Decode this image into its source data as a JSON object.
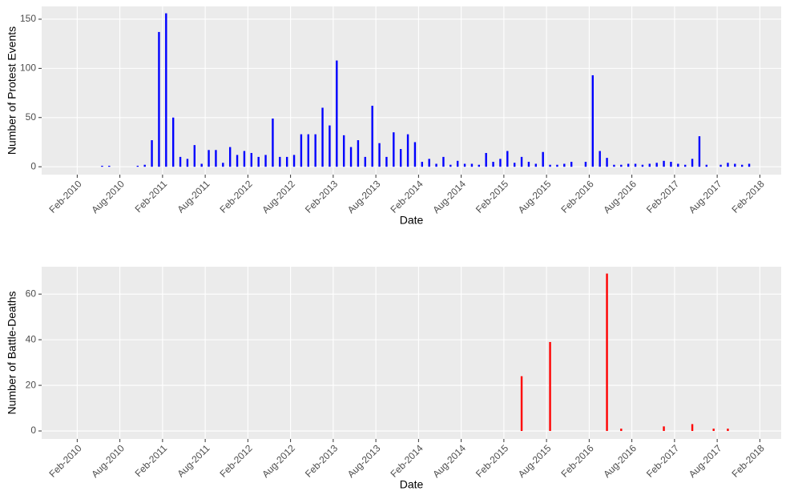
{
  "chart_data": [
    {
      "type": "bar",
      "xlabel": "Date",
      "ylabel": "Number of Protest Events",
      "grid": true,
      "series": [
        {
          "color": "#0000ff",
          "x": [
            "2010-05",
            "2010-06",
            "2010-10",
            "2010-11",
            "2010-12",
            "2011-01",
            "2011-02",
            "2011-03",
            "2011-04",
            "2011-05",
            "2011-06",
            "2011-07",
            "2011-08",
            "2011-09",
            "2011-10",
            "2011-11",
            "2011-12",
            "2012-01",
            "2012-02",
            "2012-03",
            "2012-04",
            "2012-05",
            "2012-06",
            "2012-07",
            "2012-08",
            "2012-09",
            "2012-10",
            "2012-11",
            "2012-12",
            "2013-01",
            "2013-02",
            "2013-03",
            "2013-04",
            "2013-05",
            "2013-06",
            "2013-07",
            "2013-08",
            "2013-09",
            "2013-10",
            "2013-11",
            "2013-12",
            "2014-01",
            "2014-02",
            "2014-03",
            "2014-04",
            "2014-05",
            "2014-06",
            "2014-07",
            "2014-08",
            "2014-09",
            "2014-10",
            "2014-11",
            "2014-12",
            "2015-01",
            "2015-02",
            "2015-03",
            "2015-04",
            "2015-05",
            "2015-06",
            "2015-07",
            "2015-08",
            "2015-09",
            "2015-10",
            "2015-11",
            "2016-01",
            "2016-02",
            "2016-03",
            "2016-04",
            "2016-05",
            "2016-06",
            "2016-07",
            "2016-08",
            "2016-09",
            "2016-10",
            "2016-11",
            "2016-12",
            "2017-01",
            "2017-02",
            "2017-03",
            "2017-04",
            "2017-05",
            "2017-06",
            "2017-08",
            "2017-09",
            "2017-10",
            "2017-11",
            "2017-12"
          ],
          "values": [
            1,
            1,
            1,
            2,
            27,
            137,
            156,
            50,
            10,
            8,
            22,
            3,
            17,
            17,
            4,
            20,
            12,
            16,
            14,
            10,
            12,
            49,
            10,
            10,
            12,
            33,
            33,
            33,
            60,
            42,
            108,
            32,
            20,
            27,
            10,
            62,
            24,
            10,
            35,
            18,
            33,
            25,
            5,
            8,
            3,
            10,
            2,
            6,
            3,
            3,
            2,
            14,
            5,
            8,
            16,
            4,
            10,
            5,
            3,
            15,
            2,
            2,
            3,
            5,
            5,
            93,
            16,
            9,
            2,
            2,
            3,
            3,
            2,
            3,
            4,
            6,
            5,
            3,
            2,
            8,
            31,
            2,
            2,
            4,
            3,
            2,
            3
          ]
        }
      ],
      "xlim": [
        "2009-09",
        "2018-05"
      ],
      "xticks": [
        {
          "value": "2010-02",
          "label": "Feb-2010"
        },
        {
          "value": "2010-08",
          "label": "Aug-2010"
        },
        {
          "value": "2011-02",
          "label": "Feb-2011"
        },
        {
          "value": "2011-08",
          "label": "Aug-2011"
        },
        {
          "value": "2012-02",
          "label": "Feb-2012"
        },
        {
          "value": "2012-08",
          "label": "Aug-2012"
        },
        {
          "value": "2013-02",
          "label": "Feb-2013"
        },
        {
          "value": "2013-08",
          "label": "Aug-2013"
        },
        {
          "value": "2014-02",
          "label": "Feb-2014"
        },
        {
          "value": "2014-08",
          "label": "Aug-2014"
        },
        {
          "value": "2015-02",
          "label": "Feb-2015"
        },
        {
          "value": "2015-08",
          "label": "Aug-2015"
        },
        {
          "value": "2016-02",
          "label": "Feb-2016"
        },
        {
          "value": "2016-08",
          "label": "Aug-2016"
        },
        {
          "value": "2017-02",
          "label": "Feb-2017"
        },
        {
          "value": "2017-08",
          "label": "Aug-2017"
        },
        {
          "value": "2018-02",
          "label": "Feb-2018"
        }
      ],
      "ylim": [
        -8,
        163
      ],
      "yticks": [
        0,
        50,
        100,
        150
      ]
    },
    {
      "type": "bar",
      "xlabel": "Date",
      "ylabel": "Number of Battle-Deaths",
      "grid": true,
      "series": [
        {
          "color": "#ff0000",
          "x": [
            "2015-04",
            "2015-08",
            "2016-04",
            "2016-06",
            "2016-12",
            "2017-04",
            "2017-07",
            "2017-09"
          ],
          "values": [
            24,
            39,
            69,
            1,
            2,
            3,
            1,
            1
          ]
        }
      ],
      "xlim": [
        "2009-09",
        "2018-05"
      ],
      "xticks": [
        {
          "value": "2010-02",
          "label": "Feb-2010"
        },
        {
          "value": "2010-08",
          "label": "Aug-2010"
        },
        {
          "value": "2011-02",
          "label": "Feb-2011"
        },
        {
          "value": "2011-08",
          "label": "Aug-2011"
        },
        {
          "value": "2012-02",
          "label": "Feb-2012"
        },
        {
          "value": "2012-08",
          "label": "Aug-2012"
        },
        {
          "value": "2013-02",
          "label": "Feb-2013"
        },
        {
          "value": "2013-08",
          "label": "Aug-2013"
        },
        {
          "value": "2014-02",
          "label": "Feb-2014"
        },
        {
          "value": "2014-08",
          "label": "Aug-2014"
        },
        {
          "value": "2015-02",
          "label": "Feb-2015"
        },
        {
          "value": "2015-08",
          "label": "Aug-2015"
        },
        {
          "value": "2016-02",
          "label": "Feb-2016"
        },
        {
          "value": "2016-08",
          "label": "Aug-2016"
        },
        {
          "value": "2017-02",
          "label": "Feb-2017"
        },
        {
          "value": "2017-08",
          "label": "Aug-2017"
        },
        {
          "value": "2018-02",
          "label": "Feb-2018"
        }
      ],
      "ylim": [
        -3.5,
        72
      ],
      "yticks": [
        0,
        20,
        40,
        60
      ]
    }
  ]
}
